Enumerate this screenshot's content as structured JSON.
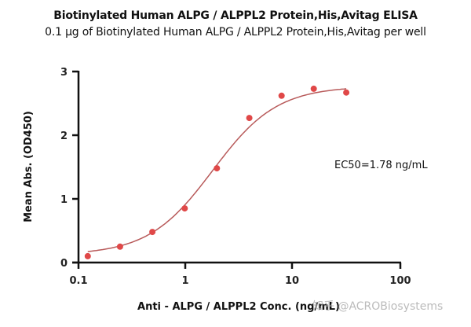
{
  "chart_data": {
    "type": "scatter",
    "title": "Biotinylated Human ALPG / ALPPL2 Protein,His,Avitag ELISA",
    "subtitle": "0.1 µg of Biotinylated Human ALPG / ALPPL2 Protein,His,Avitag per well",
    "xlabel": "Anti - ALPG / ALPPL2 Conc. (ng/mL)",
    "ylabel": "Mean Abs. (OD450)",
    "xscale": "log",
    "xlim": [
      0.1,
      100
    ],
    "ylim": [
      0,
      3
    ],
    "xticks": [
      "0.1",
      "1",
      "10",
      "100"
    ],
    "yticks": [
      "0",
      "1",
      "2",
      "3"
    ],
    "grid": false,
    "series": [
      {
        "name": "Mean Abs.",
        "color": "#e04848",
        "x": [
          0.122,
          0.244,
          0.488,
          0.977,
          1.95,
          3.91,
          7.81,
          15.6,
          31.3
        ],
        "y": [
          0.1,
          0.25,
          0.48,
          0.85,
          1.48,
          2.27,
          2.62,
          2.73,
          2.67
        ]
      }
    ],
    "fit": {
      "type": "4PL",
      "color": "#b85a5a",
      "bottom": 0.12,
      "top": 2.77,
      "ec50": 1.78,
      "hill": 1.45
    },
    "annotations": [
      {
        "text": "EC50=1.78 ng/mL"
      }
    ]
  },
  "header": {
    "title": "Biotinylated Human ALPG / ALPPL2 Protein,His,Avitag ELISA",
    "subtitle": "0.1 µg of Biotinylated Human ALPG / ALPPL2 Protein,His,Avitag per well"
  },
  "axes": {
    "y_label": "Mean Abs. (OD450)",
    "x_label": "Anti - ALPG / ALPPL2 Conc. (ng/mL)",
    "y_ticks": [
      "0",
      "1",
      "2",
      "3"
    ],
    "x_ticks": [
      "0.1",
      "1",
      "10",
      "100"
    ]
  },
  "annotation": {
    "ec50": "EC50=1.78 ng/mL"
  },
  "watermark": {
    "text": "知乎 @ACROBiosystems"
  }
}
